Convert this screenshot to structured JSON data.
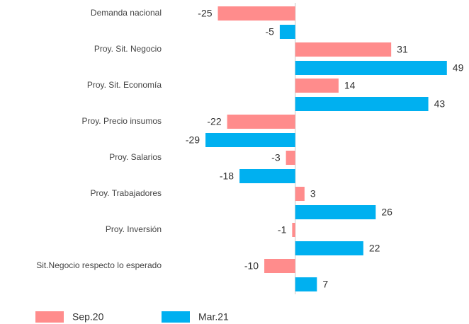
{
  "chart_data": {
    "type": "barh",
    "categories": [
      "Demanda nacional",
      "Proy. Sit. Negocio",
      "Proy. Sit. Economía",
      "Proy. Precio insumos",
      "Proy. Salarios",
      "Proy. Trabajadores",
      "Proy. Inversión",
      "Sit.Negocio respecto lo esperado"
    ],
    "series": [
      {
        "name": "Sep.20",
        "color": "#ff8c8c",
        "values": [
          -25,
          31,
          14,
          -22,
          -3,
          3,
          -1,
          -10
        ]
      },
      {
        "name": "Mar.21",
        "color": "#00b0f0",
        "values": [
          -5,
          49,
          43,
          -29,
          -18,
          26,
          22,
          7
        ]
      }
    ],
    "xlim": [
      -40,
      55
    ],
    "legend": "bottom"
  }
}
